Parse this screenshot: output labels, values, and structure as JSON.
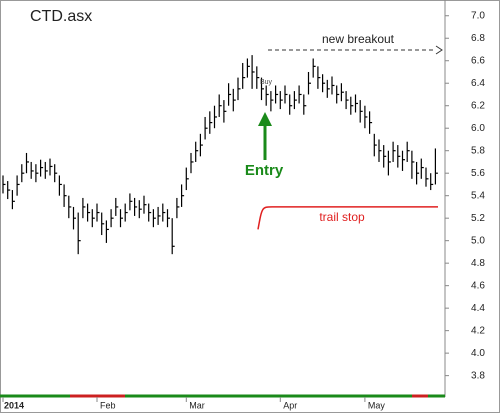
{
  "chart_data": {
    "type": "ohlc",
    "title": "CTD.asx",
    "categories": [
      "2014",
      null,
      null,
      null,
      null,
      null,
      null,
      null,
      null,
      null,
      null,
      null,
      null,
      null,
      null,
      null,
      null,
      null,
      null,
      null,
      "Feb",
      null,
      null,
      null,
      null,
      null,
      null,
      null,
      null,
      null,
      null,
      null,
      null,
      null,
      null,
      null,
      null,
      null,
      null,
      "Mar",
      null,
      null,
      null,
      null,
      null,
      null,
      null,
      null,
      null,
      null,
      null,
      null,
      null,
      null,
      null,
      null,
      null,
      null,
      null,
      "Apr",
      null,
      null,
      null,
      null,
      null,
      null,
      null,
      null,
      null,
      null,
      null,
      null,
      null,
      null,
      null,
      null,
      null,
      "May",
      null,
      null,
      null,
      null,
      null,
      null,
      null,
      null,
      null,
      null,
      null,
      null,
      null,
      null,
      null
    ],
    "high": [
      5.58,
      5.53,
      5.45,
      5.58,
      5.68,
      5.78,
      5.7,
      5.68,
      5.72,
      5.7,
      5.73,
      5.68,
      5.58,
      5.5,
      5.4,
      5.3,
      5.25,
      5.38,
      5.33,
      5.28,
      5.33,
      5.25,
      5.18,
      5.28,
      5.38,
      5.28,
      5.33,
      5.42,
      5.38,
      5.36,
      5.4,
      5.33,
      5.28,
      5.3,
      5.33,
      5.28,
      5.2,
      5.38,
      5.5,
      5.65,
      5.78,
      5.88,
      5.95,
      6.1,
      6.15,
      6.2,
      6.3,
      6.25,
      6.4,
      6.35,
      6.45,
      6.58,
      6.62,
      6.65,
      6.55,
      6.45,
      6.38,
      6.33,
      6.38,
      6.33,
      6.38,
      6.3,
      6.33,
      6.38,
      6.3,
      6.5,
      6.62,
      6.55,
      6.48,
      6.43,
      6.46,
      6.38,
      6.4,
      6.33,
      6.28,
      6.3,
      6.25,
      6.2,
      6.15,
      5.95,
      5.9,
      5.85,
      5.8,
      5.88,
      5.85,
      5.8,
      5.88,
      5.8,
      5.7,
      5.73,
      5.65,
      5.6,
      5.82
    ],
    "low": [
      5.42,
      5.37,
      5.28,
      5.4,
      5.52,
      5.6,
      5.55,
      5.52,
      5.57,
      5.55,
      5.58,
      5.52,
      5.4,
      5.3,
      5.2,
      5.1,
      4.88,
      5.2,
      5.17,
      5.12,
      5.17,
      5.05,
      4.98,
      5.12,
      5.22,
      5.12,
      5.17,
      5.27,
      5.22,
      5.2,
      5.24,
      5.17,
      5.12,
      5.14,
      5.17,
      5.12,
      4.88,
      5.2,
      5.3,
      5.45,
      5.6,
      5.7,
      5.75,
      5.9,
      5.95,
      6.0,
      6.1,
      6.05,
      6.2,
      6.15,
      6.25,
      6.35,
      6.45,
      6.35,
      6.35,
      6.25,
      6.2,
      6.15,
      6.22,
      6.17,
      6.22,
      6.12,
      6.17,
      6.22,
      6.12,
      6.3,
      6.45,
      6.35,
      6.32,
      6.27,
      6.3,
      6.22,
      6.24,
      6.17,
      6.12,
      6.14,
      6.05,
      6.0,
      5.95,
      5.75,
      5.7,
      5.65,
      5.58,
      5.7,
      5.65,
      5.62,
      5.7,
      5.55,
      5.5,
      5.55,
      5.48,
      5.45,
      5.5
    ],
    "close": [
      5.5,
      5.45,
      5.35,
      5.5,
      5.6,
      5.7,
      5.62,
      5.6,
      5.65,
      5.62,
      5.66,
      5.6,
      5.5,
      5.4,
      5.3,
      5.2,
      5.0,
      5.3,
      5.25,
      5.2,
      5.25,
      5.15,
      5.1,
      5.2,
      5.3,
      5.2,
      5.25,
      5.35,
      5.3,
      5.28,
      5.32,
      5.25,
      5.2,
      5.22,
      5.25,
      5.2,
      4.95,
      5.3,
      5.4,
      5.55,
      5.7,
      5.8,
      5.85,
      6.0,
      6.05,
      6.1,
      6.2,
      6.15,
      6.3,
      6.25,
      6.35,
      6.45,
      6.55,
      6.5,
      6.45,
      6.35,
      6.3,
      6.25,
      6.3,
      6.25,
      6.3,
      6.2,
      6.25,
      6.3,
      6.2,
      6.4,
      6.55,
      6.45,
      6.4,
      6.35,
      6.38,
      6.3,
      6.32,
      6.25,
      6.2,
      6.22,
      6.15,
      6.1,
      6.05,
      5.85,
      5.8,
      5.75,
      5.7,
      5.8,
      5.75,
      5.72,
      5.8,
      5.7,
      5.6,
      5.65,
      5.55,
      5.5,
      5.6
    ],
    "color": "#000000",
    "ylim": [
      3.61,
      7.14
    ],
    "yticks": [
      3.8,
      {
        "value": 4.0,
        "label": "4.0"
      },
      4.2,
      4.4,
      4.6,
      4.8,
      {
        "value": 5.0,
        "label": "5.0"
      },
      5.2,
      5.4,
      5.6,
      5.8,
      {
        "value": 6.0,
        "label": "6.0"
      },
      6.2,
      6.4,
      6.6,
      6.8,
      {
        "value": 7.0,
        "label": "7.0"
      }
    ],
    "annotations": {
      "breakout": "new breakout",
      "entry": "Entry",
      "buy": "Buy",
      "trail_stop": {
        "label": "trail stop",
        "start": 5.1,
        "level": 5.3,
        "color": "#e02020"
      }
    }
  }
}
